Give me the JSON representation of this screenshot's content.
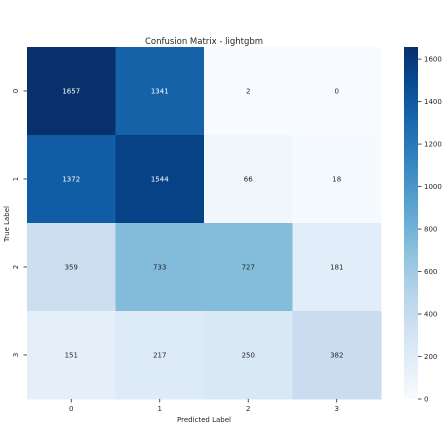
{
  "chart_data": {
    "type": "heatmap",
    "title": "Confusion Matrix - lightgbm",
    "xlabel": "Predicted Label",
    "ylabel": "True Label",
    "x_categories": [
      "0",
      "1",
      "2",
      "3"
    ],
    "y_categories": [
      "0",
      "1",
      "2",
      "3"
    ],
    "values": [
      [
        1657,
        1341,
        2,
        0
      ],
      [
        1372,
        1544,
        66,
        18
      ],
      [
        359,
        733,
        727,
        181
      ],
      [
        151,
        217,
        250,
        382
      ]
    ],
    "colorbar": {
      "min": 0,
      "max": 1657,
      "ticks": [
        0,
        200,
        400,
        600,
        800,
        1000,
        1200,
        1400,
        1600
      ]
    },
    "colormap": "Blues",
    "colors": {
      "low": "#f7fbff",
      "high": "#08306b",
      "text_dark": "#262626",
      "text_light": "#ffffff"
    }
  }
}
